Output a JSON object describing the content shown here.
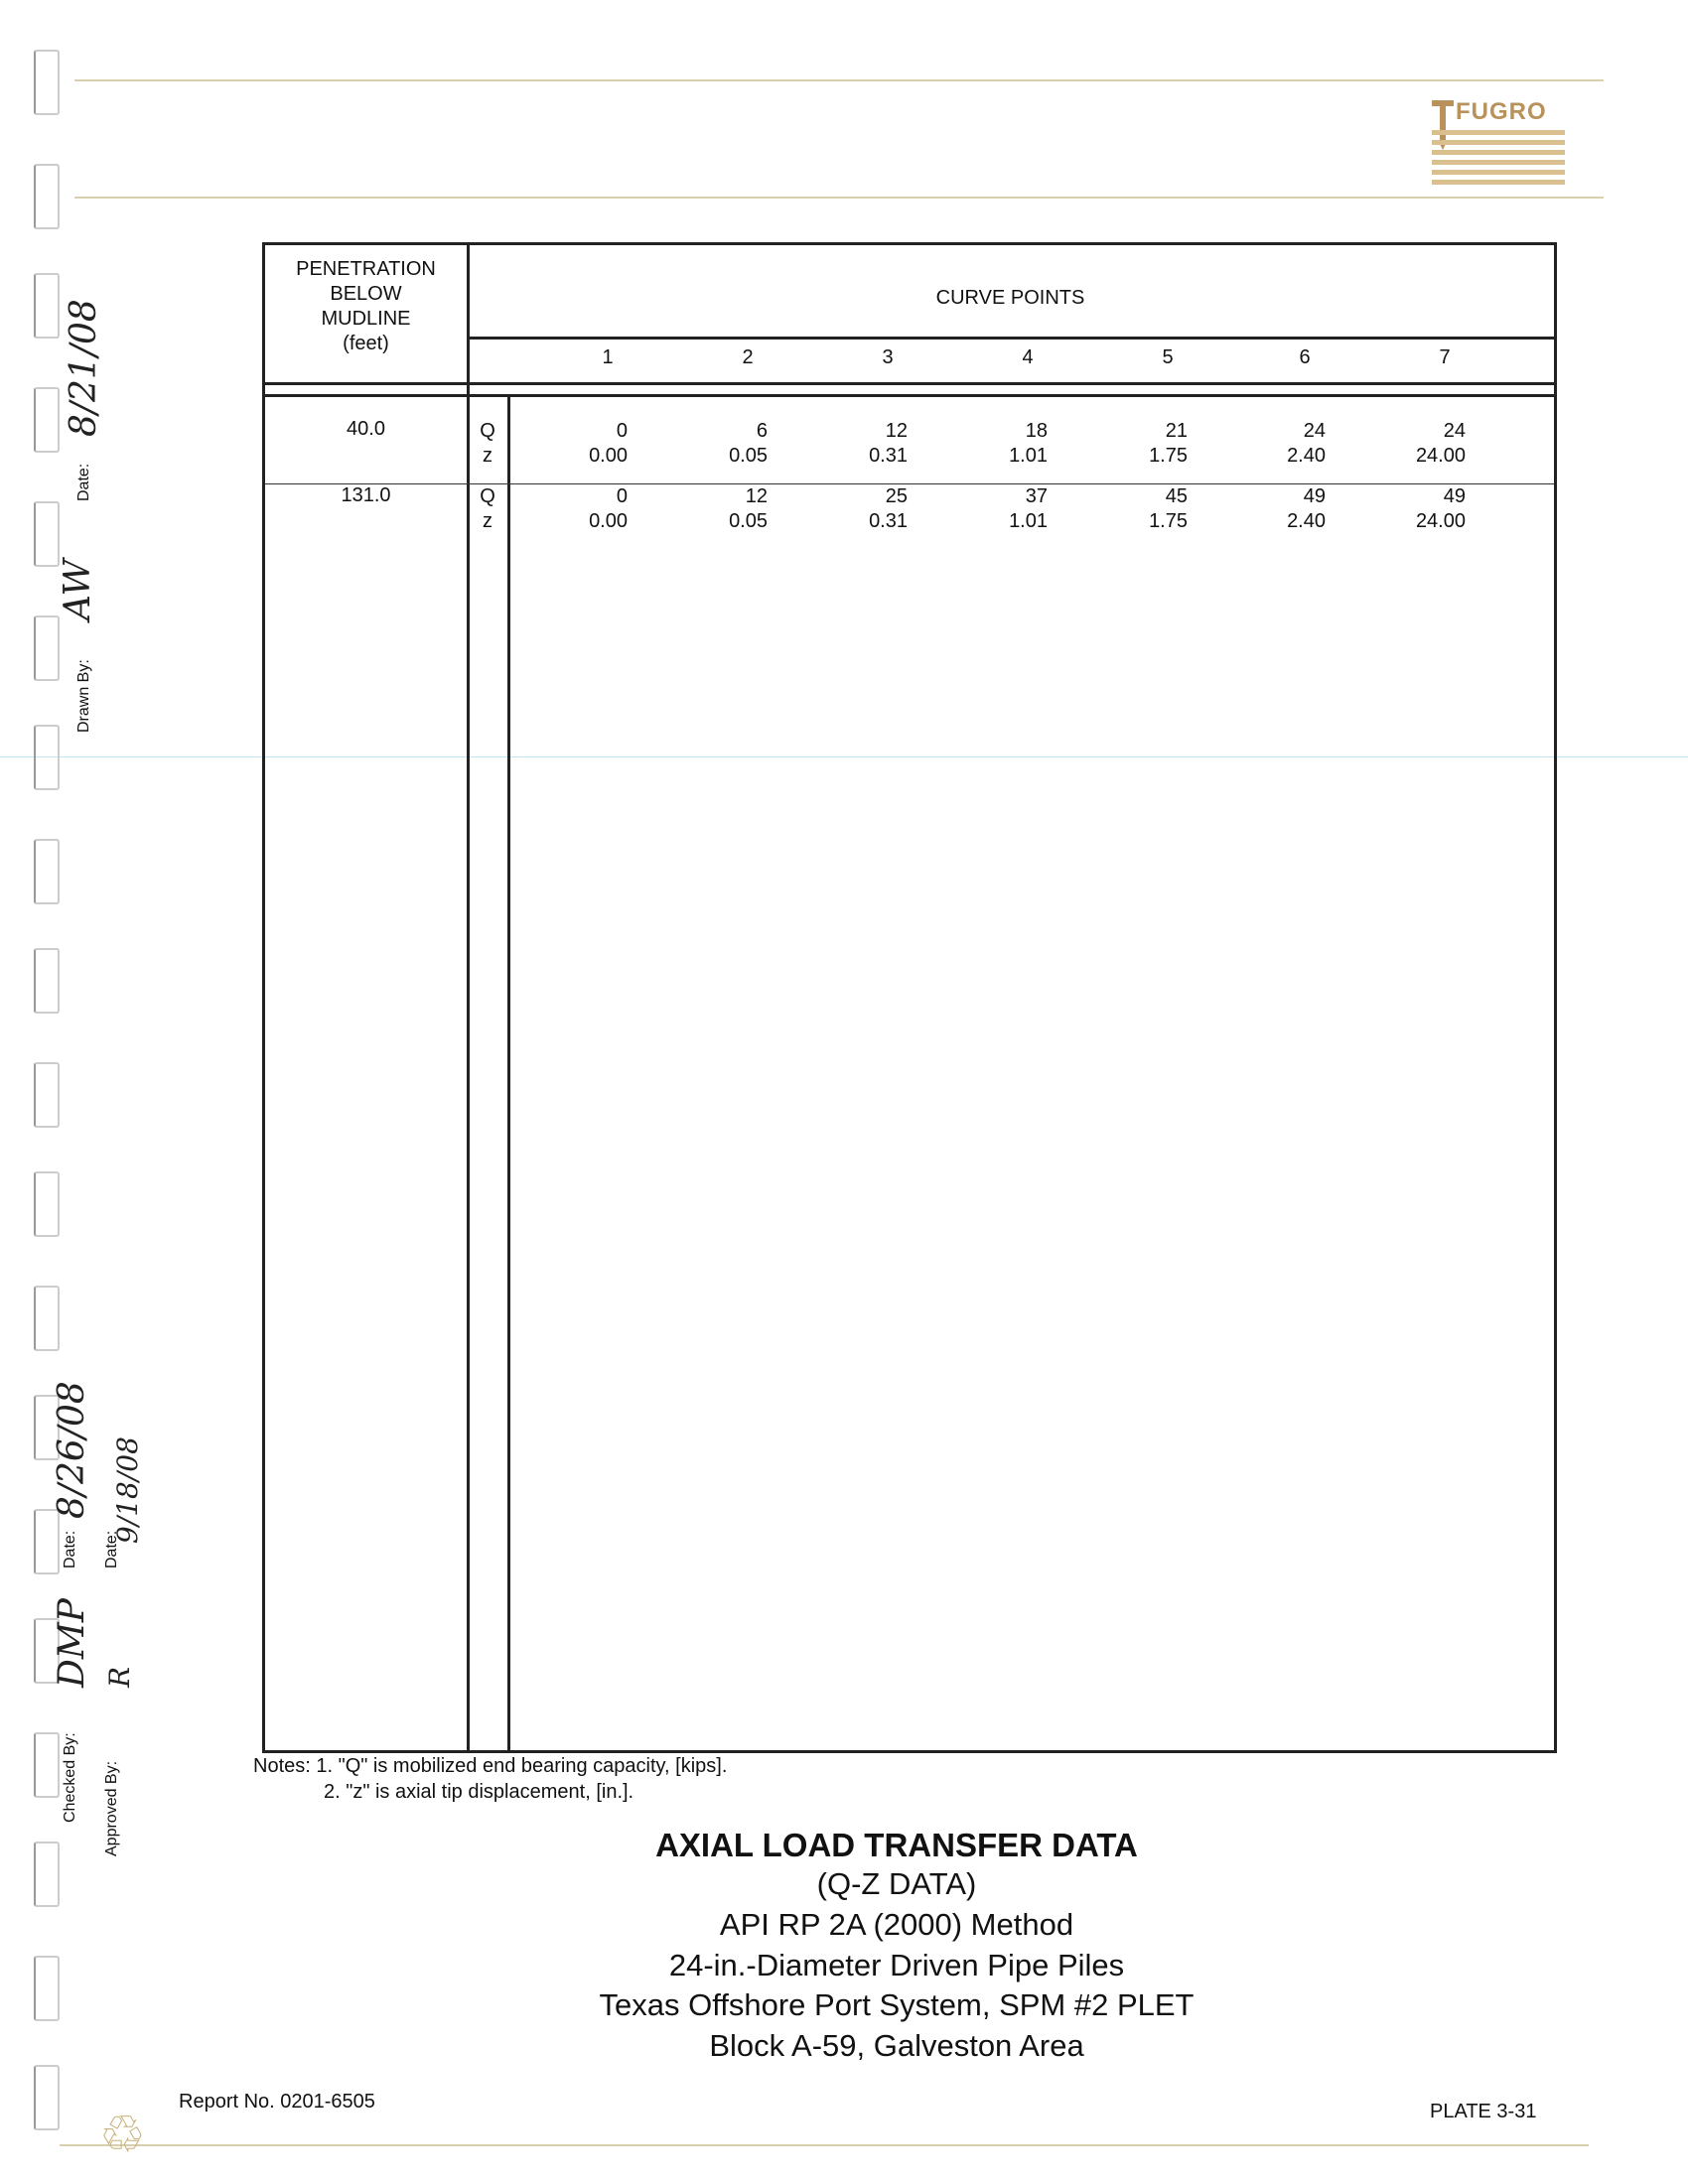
{
  "logo": {
    "text": "FUGRO",
    "color": "#b8925a"
  },
  "sidebar": {
    "drawn_by_label": "Drawn By:",
    "drawn_by_signature": "AW",
    "drawn_date_label": "Date:",
    "drawn_date": "8/21/08",
    "checked_by_label": "Checked By:",
    "checked_by_signature": "DMP",
    "checked_date_label": "Date:",
    "checked_date": "8/26/08",
    "approved_by_label": "Approved By:",
    "approved_by_signature": "R",
    "approved_date_label": "Date:",
    "approved_date": "9/18/08"
  },
  "table": {
    "penetration_header": [
      "PENETRATION",
      "BELOW",
      "MUDLINE",
      "(feet)"
    ],
    "curve_points_header": "CURVE POINTS",
    "point_numbers": [
      "1",
      "2",
      "3",
      "4",
      "5",
      "6",
      "7"
    ],
    "rows": [
      {
        "depth": "40.0",
        "q_label": "Q",
        "z_label": "z",
        "Q": [
          "0",
          "6",
          "12",
          "18",
          "21",
          "24",
          "24"
        ],
        "z": [
          "0.00",
          "0.05",
          "0.31",
          "1.01",
          "1.75",
          "2.40",
          "24.00"
        ]
      },
      {
        "depth": "131.0",
        "q_label": "Q",
        "z_label": "z",
        "Q": [
          "0",
          "12",
          "25",
          "37",
          "45",
          "49",
          "49"
        ],
        "z": [
          "0.00",
          "0.05",
          "0.31",
          "1.01",
          "1.75",
          "2.40",
          "24.00"
        ]
      }
    ]
  },
  "notes": {
    "line1": "Notes: 1. \"Q\" is mobilized end bearing capacity, [kips].",
    "line2": "2. \"z\" is axial tip displacement, [in.]."
  },
  "title_block": {
    "title": "AXIAL LOAD TRANSFER DATA",
    "lines": [
      "(Q-Z DATA)",
      "API RP 2A (2000) Method",
      "24-in.-Diameter Driven Pipe Piles",
      "Texas Offshore Port System, SPM #2 PLET",
      "Block A-59, Galveston Area"
    ]
  },
  "footer": {
    "report_no": "Report No. 0201-6505",
    "plate": "PLATE 3-31"
  }
}
